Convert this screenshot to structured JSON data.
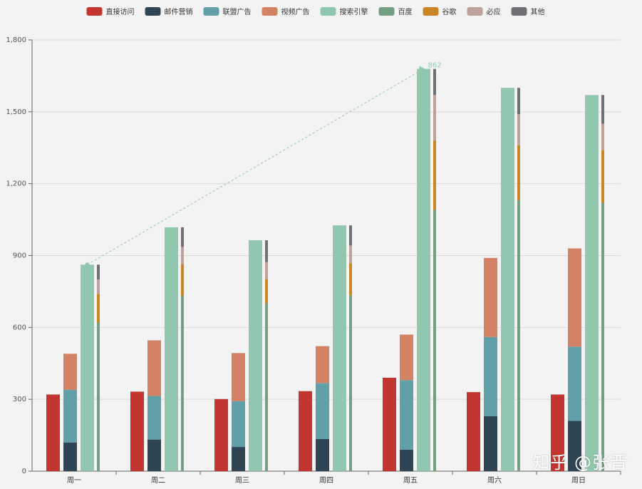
{
  "chart_data": {
    "type": "bar",
    "categories": [
      "周一",
      "周二",
      "周三",
      "周四",
      "周五",
      "周六",
      "周日"
    ],
    "ylim": [
      0,
      1800
    ],
    "yticks": [
      "0",
      "300",
      "600",
      "900",
      "1,200",
      "1,500",
      "1,800"
    ],
    "ytick_values": [
      0,
      300,
      600,
      900,
      1200,
      1500,
      1800
    ],
    "legend_position": "top-center",
    "grid": true,
    "series": [
      {
        "name": "直接访问",
        "color": "#c23531",
        "group": "direct",
        "values": [
          320,
          332,
          301,
          334,
          390,
          330,
          320
        ]
      },
      {
        "name": "邮件营销",
        "color": "#2f4554",
        "group": "ad",
        "values": [
          120,
          132,
          101,
          134,
          90,
          230,
          210
        ]
      },
      {
        "name": "联盟广告",
        "color": "#61a0a8",
        "group": "ad",
        "values": [
          220,
          182,
          191,
          234,
          290,
          330,
          310
        ]
      },
      {
        "name": "视频广告",
        "color": "#d48265",
        "group": "ad",
        "values": [
          150,
          232,
          201,
          154,
          190,
          330,
          410
        ]
      },
      {
        "name": "搜索引擎",
        "color": "#91c7ae",
        "group": "search",
        "values": [
          862,
          1018,
          964,
          1026,
          1679,
          1600,
          1570
        ]
      },
      {
        "name": "百度",
        "color": "#749f83",
        "group": "engine",
        "values": [
          620,
          732,
          701,
          734,
          1090,
          1130,
          1120
        ]
      },
      {
        "name": "谷歌",
        "color": "#ca8622",
        "group": "engine",
        "values": [
          120,
          132,
          101,
          134,
          290,
          230,
          220
        ]
      },
      {
        "name": "必应",
        "color": "#bda29a",
        "group": "engine",
        "values": [
          60,
          72,
          71,
          74,
          190,
          130,
          110
        ]
      },
      {
        "name": "其他",
        "color": "#6e7074",
        "group": "engine",
        "values": [
          62,
          82,
          91,
          84,
          109,
          110,
          120
        ]
      }
    ],
    "annotations": [
      {
        "type": "markline",
        "series": "搜索引擎",
        "from": "周一",
        "to": "周五",
        "from_value": 862,
        "to_value": 1679,
        "label": "862"
      }
    ]
  },
  "watermark": "知乎 @张晋"
}
